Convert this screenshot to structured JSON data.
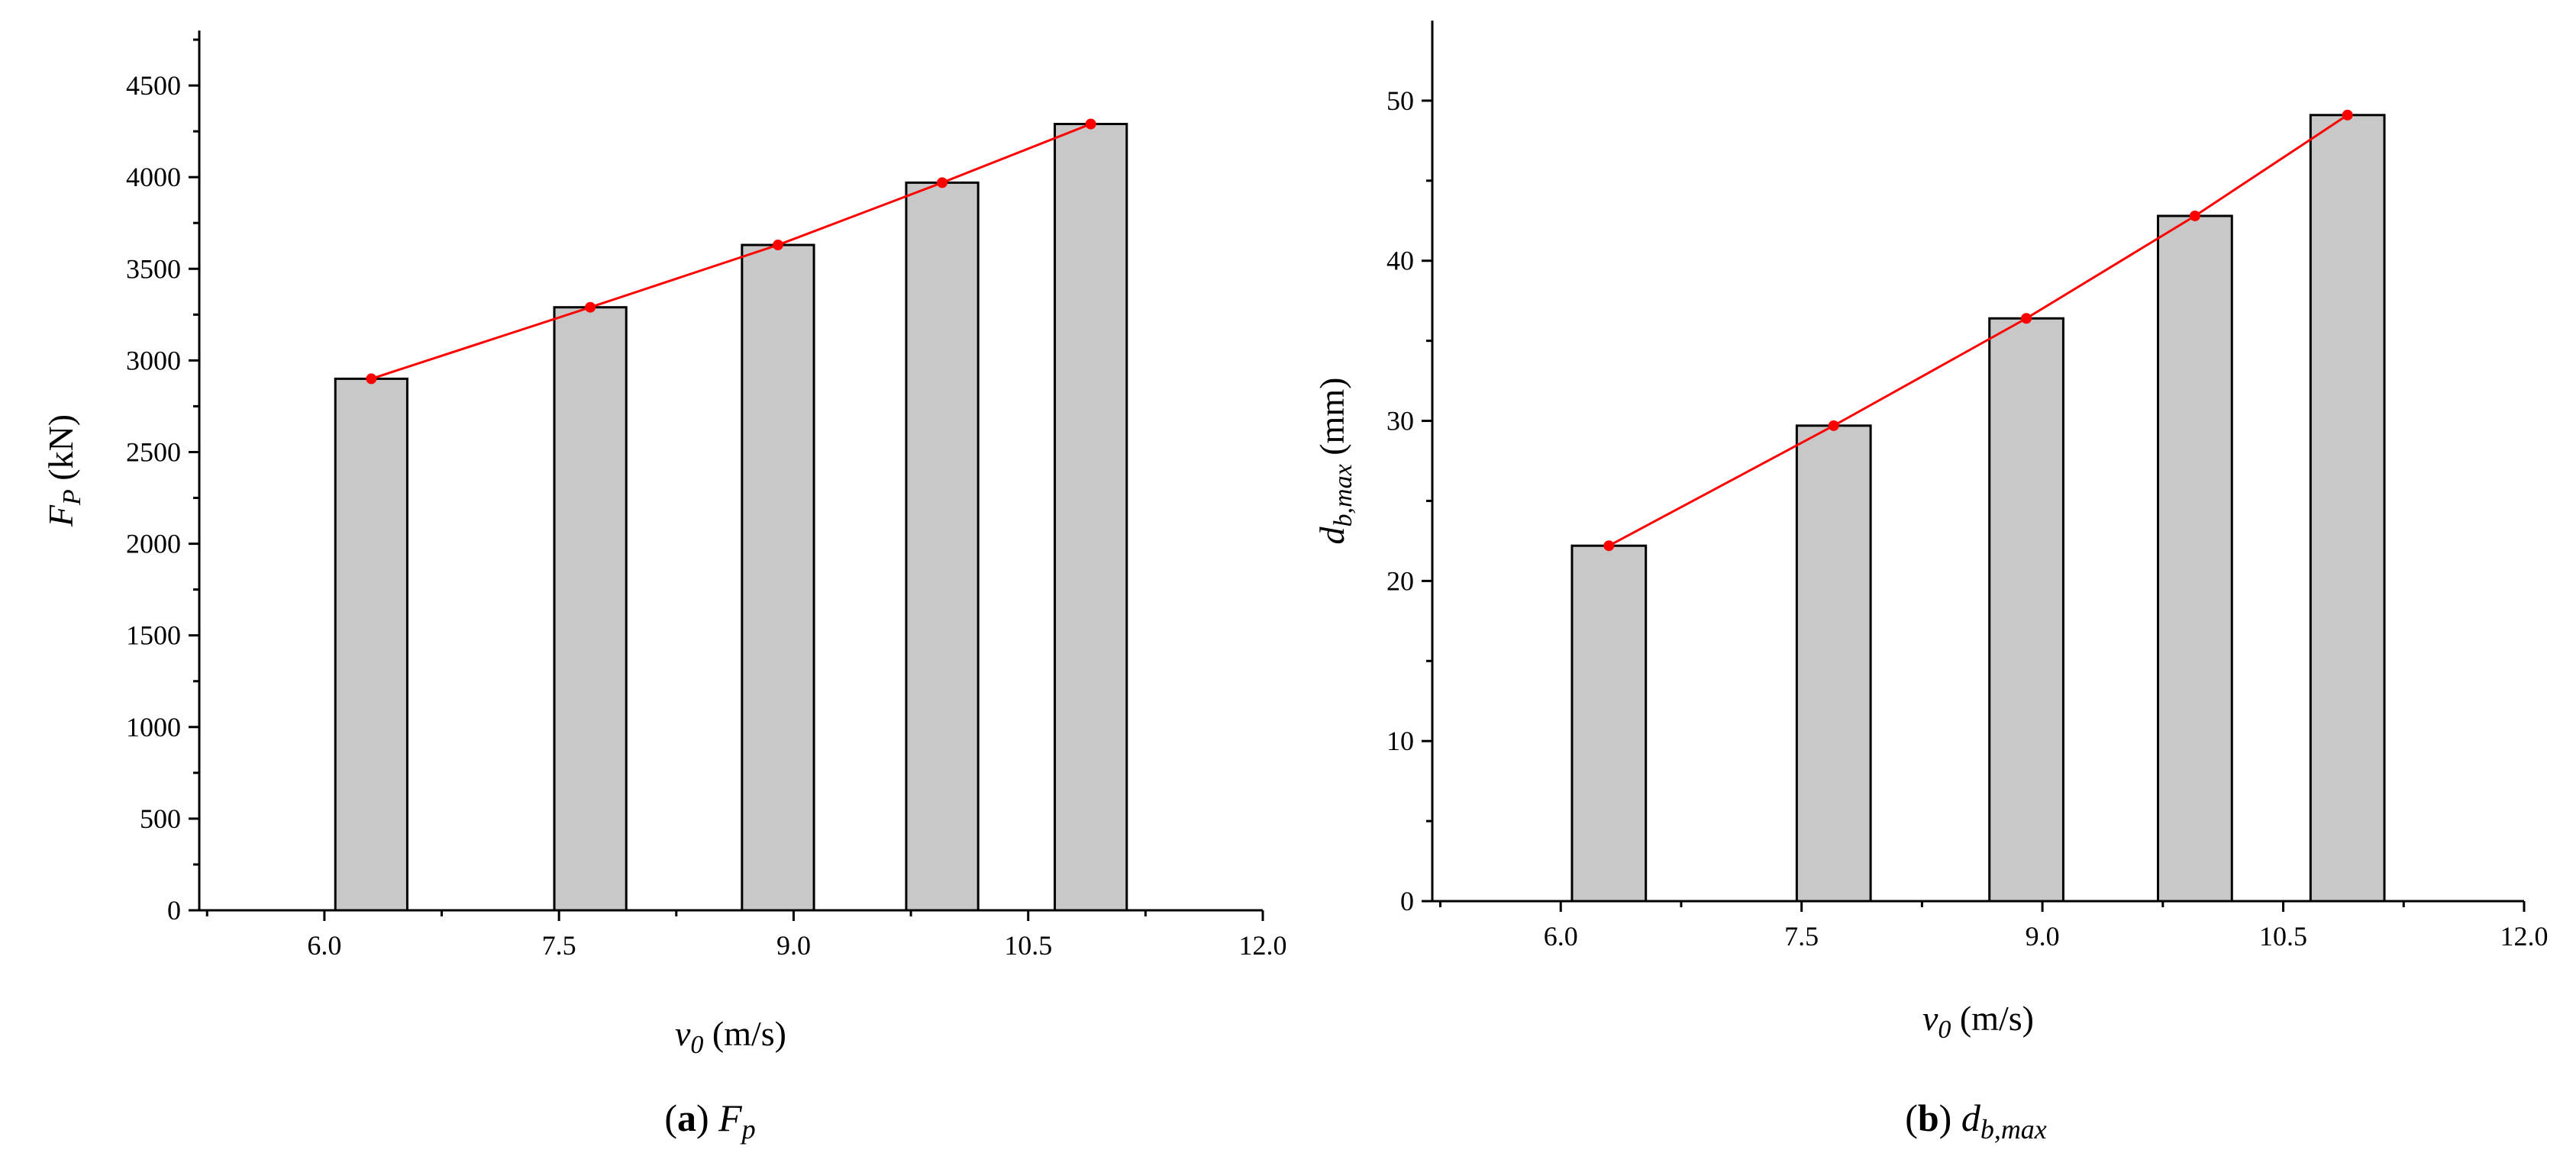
{
  "figure": {
    "captions": [
      {
        "letter": "a",
        "symbol": "F",
        "sub": "p"
      },
      {
        "letter": "b",
        "symbol": "d",
        "sub": "b,max"
      }
    ]
  },
  "chart_data": [
    {
      "type": "bar",
      "title": "",
      "xlabel": {
        "symbol": "v",
        "sub": "0",
        "unit": " (m/s)"
      },
      "ylabel": {
        "symbol": "F",
        "sub": "P",
        "unit": " (kN)"
      },
      "xlim": [
        5.2,
        12.0
      ],
      "ylim": [
        0,
        4800
      ],
      "xticks": [
        6.0,
        7.5,
        9.0,
        10.5,
        12.0
      ],
      "xtick_labels": [
        "6.0",
        "7.5",
        "9.0",
        "10.5",
        "12.0"
      ],
      "yticks": [
        0,
        500,
        1000,
        1500,
        2000,
        2500,
        3000,
        3500,
        4000,
        4500
      ],
      "ytick_labels": [
        "0",
        "500",
        "1000",
        "1500",
        "2000",
        "2500",
        "3000",
        "3500",
        "4000",
        "4500"
      ],
      "x": [
        6.3,
        7.7,
        8.9,
        9.95,
        10.9
      ],
      "bar_width": 0.46,
      "values": [
        2900,
        3290,
        3630,
        3970,
        4290
      ],
      "line_values": [
        2900,
        3290,
        3630,
        3970,
        4290
      ],
      "bar_color": "#c8c8c8",
      "line_color": "#ff0000"
    },
    {
      "type": "bar",
      "title": "",
      "xlabel": {
        "symbol": "v",
        "sub": "0",
        "unit": " (m/s)"
      },
      "ylabel": {
        "symbol": "d",
        "sub": "b,max",
        "unit": " (mm)"
      },
      "xlim": [
        5.2,
        12.0
      ],
      "ylim": [
        0,
        55
      ],
      "xticks": [
        6.0,
        7.5,
        9.0,
        10.5,
        12.0
      ],
      "xtick_labels": [
        "6.0",
        "7.5",
        "9.0",
        "10.5",
        "12.0"
      ],
      "yticks": [
        0,
        10,
        20,
        30,
        40,
        50
      ],
      "ytick_labels": [
        "0",
        "10",
        "20",
        "30",
        "40",
        "50"
      ],
      "x": [
        6.3,
        7.7,
        8.9,
        9.95,
        10.9
      ],
      "bar_width": 0.46,
      "values": [
        22.2,
        29.7,
        36.4,
        42.8,
        49.1
      ],
      "line_values": [
        22.2,
        29.7,
        36.4,
        42.8,
        49.1
      ],
      "bar_color": "#c8c8c8",
      "line_color": "#ff0000"
    }
  ]
}
